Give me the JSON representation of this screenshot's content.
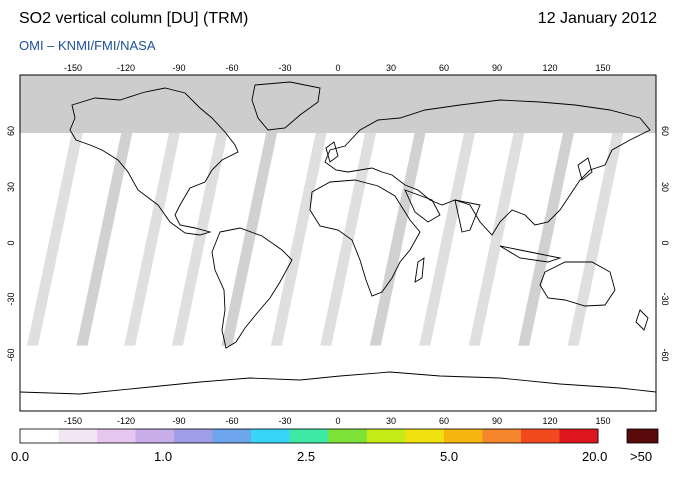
{
  "header": {
    "title": "SO2 vertical column [DU] (TRM)",
    "date": "12 January 2012",
    "credit": "OMI  –  KNMI/FMI/NASA"
  },
  "axes": {
    "lon_ticks": [
      "-150",
      "-120",
      "-90",
      "-60",
      "-30",
      "0",
      "30",
      "60",
      "90",
      "120",
      "150"
    ],
    "lat_ticks": [
      "60",
      "30",
      "0",
      "-30",
      "-60"
    ]
  },
  "colorbar": {
    "labels": [
      "0.0",
      "1.0",
      "2.5",
      "5.0",
      "20.0"
    ],
    "overflow_label": ">50",
    "colors": [
      "#ffffff",
      "#f3e6f6",
      "#e6c6ee",
      "#c7aee9",
      "#9f9ee6",
      "#6ea6ee",
      "#36d6f6",
      "#3ee9a6",
      "#7ee236",
      "#c6ea16",
      "#f0e20e",
      "#f6b60e",
      "#f6862e",
      "#f04a1e",
      "#e0161e"
    ],
    "overflow_color": "#5a0a0a"
  },
  "map": {
    "polar_gap_color": "#cdcdcd",
    "swath_gap_color": "#c9c9c9",
    "land_outline_color": "#000000"
  }
}
